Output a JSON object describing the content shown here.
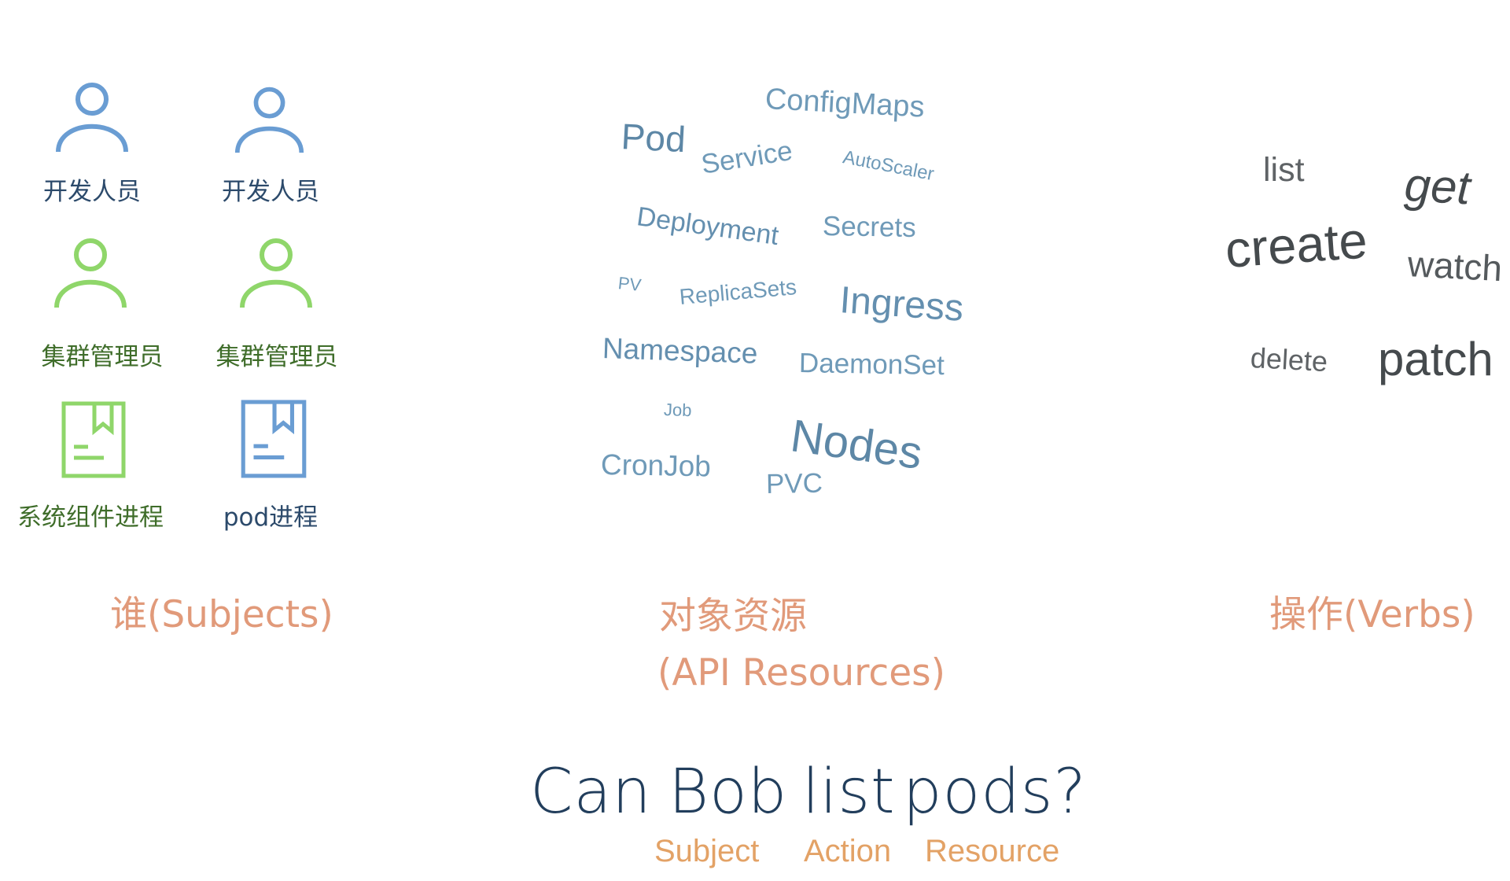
{
  "subjects": {
    "title": "谁(Subjects)",
    "items": [
      {
        "label": "开发人员",
        "icon": "person-icon",
        "color": "#6a9dd3"
      },
      {
        "label": "开发人员",
        "icon": "person-icon",
        "color": "#6a9dd3"
      },
      {
        "label": "集群管理员",
        "icon": "person-icon",
        "color": "#8fd66a"
      },
      {
        "label": "集群管理员",
        "icon": "person-icon",
        "color": "#8fd66a"
      },
      {
        "label": "系统组件进程",
        "icon": "document-icon",
        "color": "#8fd66a"
      },
      {
        "label": "pod进程",
        "icon": "document-icon",
        "color": "#6a9dd3"
      }
    ]
  },
  "resources": {
    "title_line1": "对象资源",
    "title_line2": "(API Resources)",
    "words": [
      "ConfigMaps",
      "Pod",
      "Service",
      "AutoScaler",
      "Deployment",
      "Secrets",
      "PV",
      "ReplicaSets",
      "Ingress",
      "Namespace",
      "DaemonSet",
      "Job",
      "Nodes",
      "CronJob",
      "PVC"
    ]
  },
  "verbs": {
    "title": "操作(Verbs)",
    "words": [
      "list",
      "get",
      "create",
      "watch",
      "delete",
      "patch"
    ]
  },
  "question": {
    "words": [
      "Can",
      "Bob",
      "list",
      "pods?"
    ],
    "roles": [
      "Subject",
      "Action",
      "Resource"
    ]
  },
  "colors": {
    "title": "#e19a7a",
    "question": "#223e5c",
    "role": "#e3a266",
    "resource_word": "#6f9ab8",
    "verb_word": "#505457"
  }
}
